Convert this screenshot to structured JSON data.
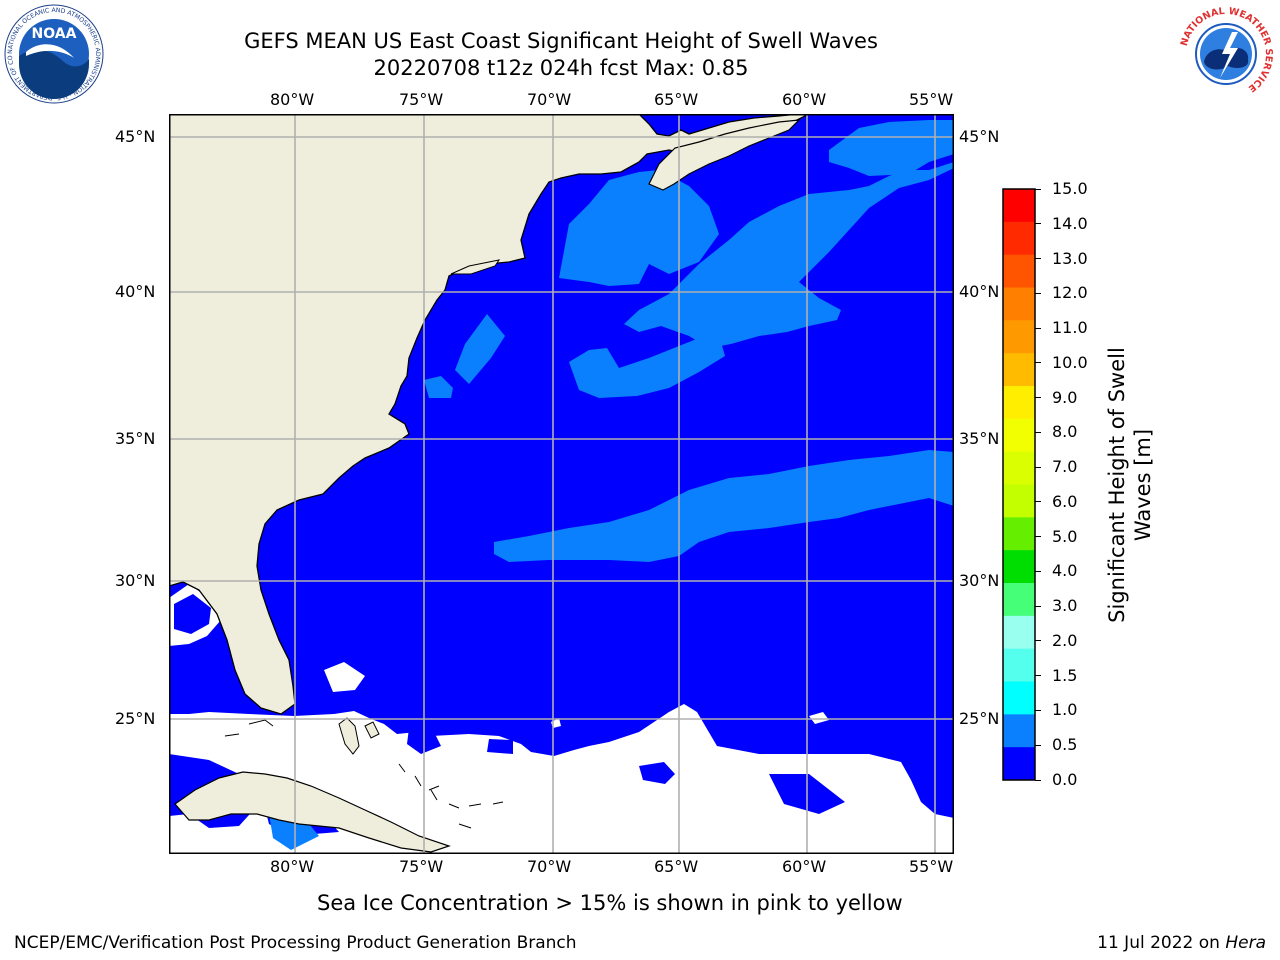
{
  "title": {
    "line1": "GEFS MEAN US East Coast Significant Height of Swell Waves",
    "line2": "20220708 t12z 024h fcst    Max: 0.85"
  },
  "map": {
    "lon_ticks": [
      "80°W",
      "75°W",
      "70°W",
      "65°W",
      "60°W",
      "55°W"
    ],
    "lat_ticks": [
      "45°N",
      "40°N",
      "35°N",
      "30°N",
      "25°N"
    ],
    "colors": {
      "land": "#efeedc",
      "ocean_low": "#0000ff",
      "ocean_mid": "#0a80ff",
      "no_data": "#ffffff",
      "grid": "#b0b0b0",
      "coast": "#000000"
    }
  },
  "colorbar": {
    "label": "Significant Height of Swell Waves [m]",
    "ticks": [
      "15.0",
      "14.0",
      "13.0",
      "12.0",
      "11.0",
      "10.0",
      "9.0",
      "8.0",
      "7.0",
      "6.0",
      "5.0",
      "4.0",
      "3.0",
      "2.0",
      "1.5",
      "1.0",
      "0.5",
      "0.0"
    ],
    "colors_top_to_bottom": [
      "#ff0000",
      "#ff2a00",
      "#ff5500",
      "#ff8000",
      "#ff9900",
      "#ffbb00",
      "#ffee00",
      "#f2ff00",
      "#d9ff00",
      "#c4ff00",
      "#66ee00",
      "#00dd00",
      "#44ff77",
      "#99ffee",
      "#55ffee",
      "#00ffff",
      "#0a80ff",
      "#0000ff"
    ]
  },
  "caption": "Sea Ice Concentration > 15% is shown in pink to yellow",
  "footer": {
    "left": "NCEP/EMC/Verification Post Processing Product Generation Branch",
    "right_date": "11 Jul 2022 on ",
    "right_host": "Hera"
  },
  "logos": {
    "noaa_text": "NOAA",
    "noaa_ring": "NATIONAL OCEANIC AND ATMOSPHERIC ADMINISTRATION · U.S. DEPARTMENT OF COMMERCE",
    "nws_ring": "NATIONAL WEATHER SERVICE"
  }
}
